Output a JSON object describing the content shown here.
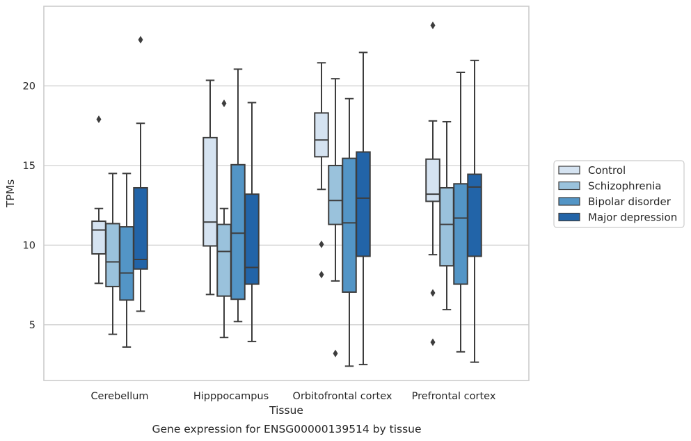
{
  "chart_data": {
    "type": "boxplot",
    "caption": "Gene expression for ENSG00000139514 by tissue",
    "xlabel": "Tissue",
    "ylabel": "TPMs",
    "categories": [
      "Cerebellum",
      "Hipppocampus",
      "Orbitofrontal cortex",
      "Prefrontal cortex"
    ],
    "yticks": [
      5,
      10,
      15,
      20
    ],
    "ylim": [
      1.5,
      25.0
    ],
    "grid": "horizontal",
    "legend_position": "right",
    "series": [
      {
        "name": "Control",
        "color": "#d5e3f1",
        "boxes": [
          {
            "whislo": 7.6,
            "q1": 9.45,
            "med": 10.95,
            "q3": 11.5,
            "whishi": 12.3,
            "fliers": [
              17.9
            ]
          },
          {
            "whislo": 6.9,
            "q1": 9.95,
            "med": 11.45,
            "q3": 16.75,
            "whishi": 20.35,
            "fliers": []
          },
          {
            "whislo": 13.5,
            "q1": 15.55,
            "med": 16.6,
            "q3": 18.3,
            "whishi": 21.45,
            "fliers": [
              10.05,
              8.15
            ]
          },
          {
            "whislo": 9.4,
            "q1": 12.75,
            "med": 13.2,
            "q3": 15.4,
            "whishi": 17.8,
            "fliers": [
              23.8,
              7.0,
              3.9
            ]
          }
        ]
      },
      {
        "name": "Schizophrenia",
        "color": "#9ac2dc",
        "boxes": [
          {
            "whislo": 4.4,
            "q1": 7.4,
            "med": 8.95,
            "q3": 11.35,
            "whishi": 14.5,
            "fliers": []
          },
          {
            "whislo": 4.2,
            "q1": 6.8,
            "med": 9.6,
            "q3": 11.3,
            "whishi": 12.3,
            "fliers": [
              18.9
            ]
          },
          {
            "whislo": 7.75,
            "q1": 11.3,
            "med": 12.8,
            "q3": 15.0,
            "whishi": 20.45,
            "fliers": [
              3.2
            ]
          },
          {
            "whislo": 5.95,
            "q1": 8.7,
            "med": 11.3,
            "q3": 13.6,
            "whishi": 17.75,
            "fliers": []
          }
        ]
      },
      {
        "name": "Bipolar disorder",
        "color": "#5395c6",
        "boxes": [
          {
            "whislo": 3.6,
            "q1": 6.55,
            "med": 8.25,
            "q3": 11.15,
            "whishi": 14.5,
            "fliers": []
          },
          {
            "whislo": 5.2,
            "q1": 6.6,
            "med": 10.75,
            "q3": 15.05,
            "whishi": 21.05,
            "fliers": []
          },
          {
            "whislo": 2.4,
            "q1": 7.05,
            "med": 11.4,
            "q3": 15.45,
            "whishi": 19.2,
            "fliers": []
          },
          {
            "whislo": 3.3,
            "q1": 7.55,
            "med": 11.7,
            "q3": 13.85,
            "whishi": 20.85,
            "fliers": []
          }
        ]
      },
      {
        "name": "Major depression",
        "color": "#2264a8",
        "boxes": [
          {
            "whislo": 5.85,
            "q1": 8.5,
            "med": 9.1,
            "q3": 13.6,
            "whishi": 17.65,
            "fliers": [
              22.9
            ]
          },
          {
            "whislo": 3.95,
            "q1": 7.55,
            "med": 8.6,
            "q3": 13.2,
            "whishi": 18.95,
            "fliers": []
          },
          {
            "whislo": 2.5,
            "q1": 9.3,
            "med": 12.95,
            "q3": 15.85,
            "whishi": 22.1,
            "fliers": []
          },
          {
            "whislo": 2.65,
            "q1": 9.3,
            "med": 13.65,
            "q3": 14.45,
            "whishi": 21.6,
            "fliers": []
          }
        ]
      }
    ]
  }
}
